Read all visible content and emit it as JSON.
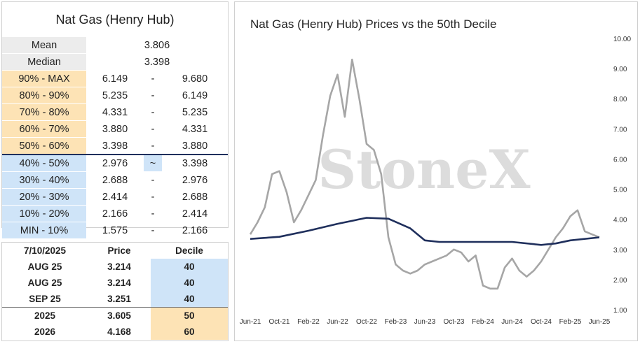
{
  "left_table": {
    "title": "Nat Gas (Henry Hub)",
    "mean_label": "Mean",
    "mean_value": "3.806",
    "median_label": "Median",
    "median_value": "3.398",
    "deciles": [
      {
        "label": "90% - MAX",
        "low": "6.149",
        "sep": "-",
        "high": "9.680",
        "band": "orange"
      },
      {
        "label": "80% - 90%",
        "low": "5.235",
        "sep": "-",
        "high": "6.149",
        "band": "orange"
      },
      {
        "label": "70% - 80%",
        "low": "4.331",
        "sep": "-",
        "high": "5.235",
        "band": "orange"
      },
      {
        "label": "60% - 70%",
        "low": "3.880",
        "sep": "-",
        "high": "4.331",
        "band": "orange"
      },
      {
        "label": "50% - 60%",
        "low": "3.398",
        "sep": "-",
        "high": "3.880",
        "band": "orange"
      },
      {
        "label": "40% - 50%",
        "low": "2.976",
        "sep": "~",
        "high": "3.398",
        "band": "blue"
      },
      {
        "label": "30% - 40%",
        "low": "2.688",
        "sep": "-",
        "high": "2.976",
        "band": "blue"
      },
      {
        "label": "20% - 30%",
        "low": "2.414",
        "sep": "-",
        "high": "2.688",
        "band": "blue"
      },
      {
        "label": "10% - 20%",
        "low": "2.166",
        "sep": "-",
        "high": "2.414",
        "band": "blue"
      },
      {
        "label": "MIN - 10%",
        "low": "1.575",
        "sep": "-",
        "high": "2.166",
        "band": "blue"
      }
    ]
  },
  "position_table": {
    "date_header": "7/10/2025",
    "price_header": "Price",
    "decile_header": "Decile",
    "rows": [
      {
        "contract": "AUG 25",
        "price": "3.214",
        "decile": "40",
        "band": "blue"
      },
      {
        "contract": "AUG 25",
        "price": "3.214",
        "decile": "40",
        "band": "blue"
      },
      {
        "contract": "SEP 25",
        "price": "3.251",
        "decile": "40",
        "band": "blue"
      },
      {
        "contract": "2025",
        "price": "3.605",
        "decile": "50",
        "band": "orange"
      },
      {
        "contract": "2026",
        "price": "4.168",
        "decile": "60",
        "band": "orange"
      }
    ]
  },
  "colors": {
    "orange_band": "#fde3b5",
    "blue_band": "#cfe4f8",
    "price_line": "#a6a6a6",
    "median_line": "#1f2f5c",
    "watermark": "#dcdcdc"
  },
  "chart_data": {
    "type": "line",
    "title": "Nat Gas (Henry Hub) Prices vs the 50th Decile",
    "watermark": "StoneX",
    "x_tick_labels": [
      "Jun-21",
      "Oct-21",
      "Feb-22",
      "Jun-22",
      "Oct-22",
      "Feb-23",
      "Jun-23",
      "Oct-23",
      "Feb-24",
      "Jun-24",
      "Oct-24",
      "Feb-25",
      "Jun-25"
    ],
    "xlim": [
      "2021-06",
      "2025-06"
    ],
    "y_ticks": [
      1.0,
      2.0,
      3.0,
      4.0,
      5.0,
      6.0,
      7.0,
      8.0,
      9.0,
      10.0
    ],
    "y_tick_labels": [
      "1.00",
      "2.00",
      "3.00",
      "4.00",
      "5.00",
      "6.00",
      "7.00",
      "8.00",
      "9.00",
      "10.00"
    ],
    "ylim": [
      1.0,
      10.0
    ],
    "y_axis_side": "right",
    "grid": false,
    "series": [
      {
        "kind": "price",
        "x": [
          "2021-06",
          "2021-07",
          "2021-08",
          "2021-09",
          "2021-10",
          "2021-11",
          "2021-12",
          "2022-01",
          "2022-02",
          "2022-03",
          "2022-04",
          "2022-05",
          "2022-06",
          "2022-07",
          "2022-08",
          "2022-09",
          "2022-10",
          "2022-11",
          "2022-12",
          "2023-01",
          "2023-02",
          "2023-03",
          "2023-04",
          "2023-05",
          "2023-06",
          "2023-07",
          "2023-08",
          "2023-09",
          "2023-10",
          "2023-11",
          "2023-12",
          "2024-01",
          "2024-02",
          "2024-03",
          "2024-04",
          "2024-05",
          "2024-06",
          "2024-07",
          "2024-08",
          "2024-09",
          "2024-10",
          "2024-11",
          "2024-12",
          "2025-01",
          "2025-02",
          "2025-03",
          "2025-04",
          "2025-05",
          "2025-06"
        ],
        "y": [
          3.5,
          3.9,
          4.4,
          5.5,
          5.6,
          4.9,
          3.9,
          4.3,
          4.8,
          5.3,
          6.8,
          8.1,
          8.8,
          7.4,
          9.3,
          8.0,
          6.5,
          6.3,
          5.5,
          3.4,
          2.5,
          2.3,
          2.2,
          2.3,
          2.5,
          2.6,
          2.7,
          2.8,
          3.0,
          2.9,
          2.6,
          2.8,
          1.8,
          1.7,
          1.7,
          2.4,
          2.7,
          2.3,
          2.1,
          2.3,
          2.6,
          3.0,
          3.4,
          3.7,
          4.1,
          4.3,
          3.6,
          3.5,
          3.4
        ]
      },
      {
        "kind": "median",
        "x": [
          "2021-06",
          "2021-10",
          "2022-02",
          "2022-06",
          "2022-10",
          "2023-01",
          "2023-04",
          "2023-06",
          "2023-08",
          "2023-10",
          "2024-02",
          "2024-06",
          "2024-10",
          "2024-12",
          "2025-02",
          "2025-06"
        ],
        "y": [
          3.35,
          3.42,
          3.62,
          3.85,
          4.05,
          4.02,
          3.7,
          3.3,
          3.25,
          3.25,
          3.25,
          3.25,
          3.15,
          3.2,
          3.3,
          3.4
        ]
      }
    ]
  }
}
